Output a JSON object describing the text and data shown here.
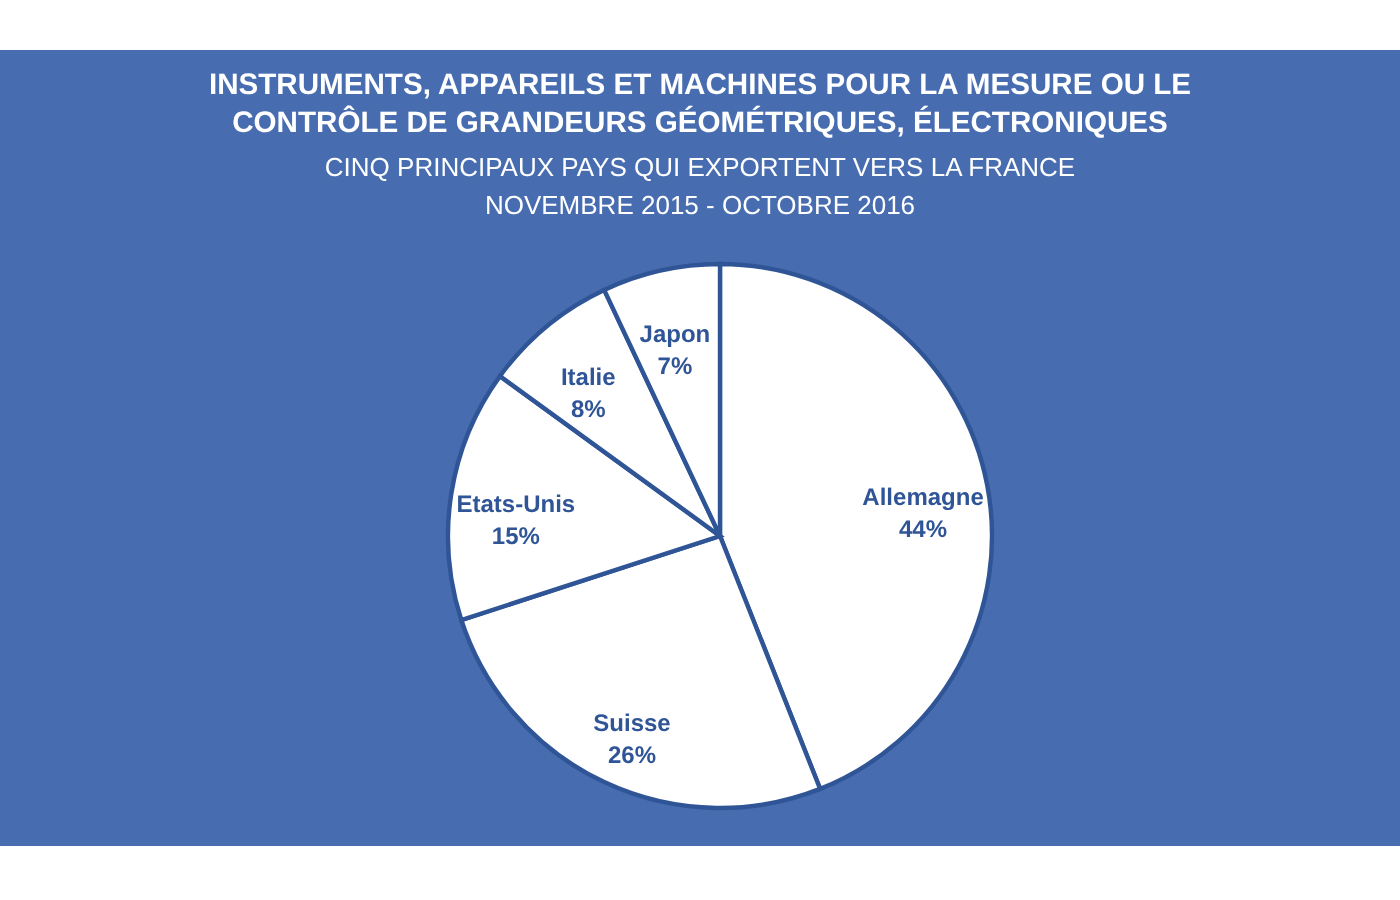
{
  "chart_data": {
    "type": "pie",
    "title": "INSTRUMENTS, APPAREILS ET MACHINES POUR LA MESURE OU LE\nCONTRÔLE DE GRANDEURS GÉOMÉTRIQUES, ÉLECTRONIQUES",
    "subtitle": "CINQ PRINCIPAUX PAYS QUI EXPORTENT VERS LA FRANCE\nNOVEMBRE 2015 - OCTOBRE 2016",
    "categories": [
      "Allemagne",
      "Suisse",
      "Etats-Unis",
      "Italie",
      "Japon"
    ],
    "values": [
      44,
      26,
      15,
      8,
      7
    ],
    "colors": [
      "#ffffff",
      "#ffffff",
      "#ffffff",
      "#ffffff",
      "#ffffff"
    ],
    "value_labels": [
      "44%",
      "26%",
      "15%",
      "8%",
      "7%"
    ]
  }
}
